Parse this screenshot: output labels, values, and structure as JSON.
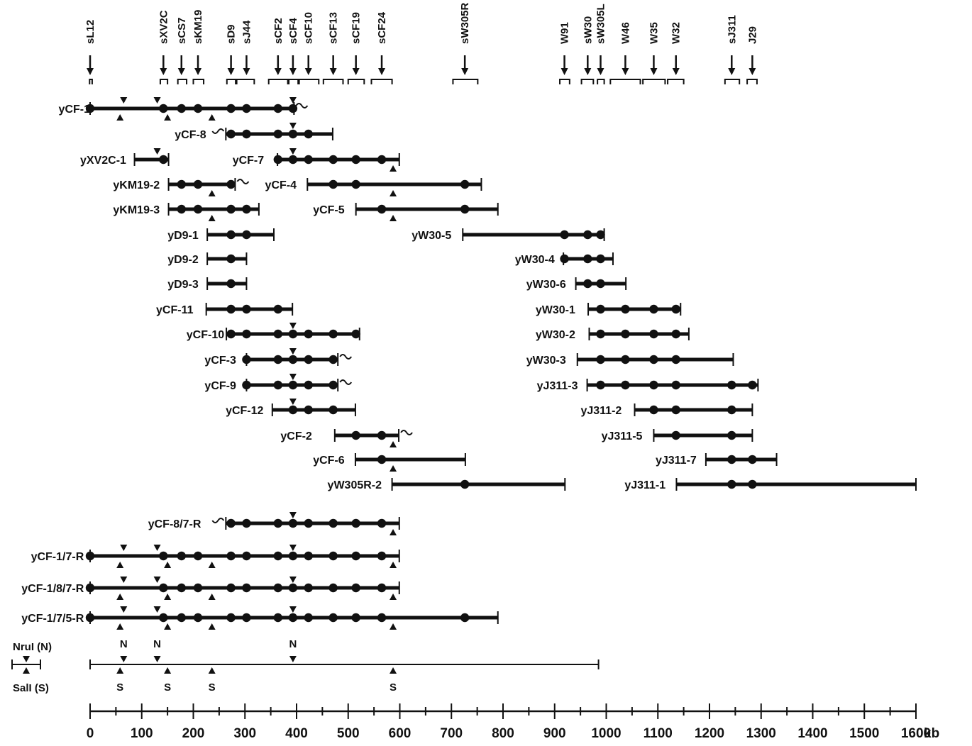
{
  "probes": [
    {
      "name": "sL12",
      "kb": 0,
      "lo": -1,
      "hi": 4
    },
    {
      "name": "sXV2C",
      "kb": 142,
      "lo": 136,
      "hi": 150
    },
    {
      "name": "sCS7",
      "kb": 177,
      "lo": 170,
      "hi": 187
    },
    {
      "name": "sKM19",
      "kb": 209,
      "lo": 200,
      "hi": 220
    },
    {
      "name": "sD9",
      "kb": 273,
      "lo": 265,
      "hi": 282
    },
    {
      "name": "sJ44",
      "kb": 303,
      "lo": 284,
      "hi": 318
    },
    {
      "name": "sCF2",
      "kb": 364,
      "lo": 346,
      "hi": 383
    },
    {
      "name": "sCF4",
      "kb": 393,
      "lo": 385,
      "hi": 403
    },
    {
      "name": "sCF10",
      "kb": 423,
      "lo": 405,
      "hi": 443
    },
    {
      "name": "sCF13",
      "kb": 471,
      "lo": 452,
      "hi": 490
    },
    {
      "name": "sCF19",
      "kb": 515,
      "lo": 500,
      "hi": 531
    },
    {
      "name": "sCF24",
      "kb": 565,
      "lo": 545,
      "hi": 585
    },
    {
      "name": "sW305R",
      "kb": 726,
      "lo": 703,
      "hi": 751
    },
    {
      "name": "W91",
      "kb": 919,
      "lo": 910,
      "hi": 929
    },
    {
      "name": "sW30",
      "kb": 964,
      "lo": 952,
      "hi": 975
    },
    {
      "name": "sW305L",
      "kb": 989,
      "lo": 983,
      "hi": 996
    },
    {
      "name": "W46",
      "kb": 1037,
      "lo": 1008,
      "hi": 1066
    },
    {
      "name": "W35",
      "kb": 1092,
      "lo": 1071,
      "hi": 1114
    },
    {
      "name": "W32",
      "kb": 1135,
      "lo": 1119,
      "hi": 1150
    },
    {
      "name": "sJ311",
      "kb": 1243,
      "lo": 1230,
      "hi": 1258
    },
    {
      "name": "J29",
      "kb": 1283,
      "lo": 1273,
      "hi": 1292
    }
  ],
  "clones": [
    {
      "label": "yCF-1",
      "label_end": 0,
      "start": 0,
      "end": 395,
      "wavy_right": true,
      "markers": [
        0,
        142,
        177,
        209,
        273,
        303,
        364,
        393
      ],
      "n_sites": [
        65,
        130,
        393
      ],
      "s_sites": [
        58,
        150,
        236
      ]
    },
    {
      "label": "yCF-8",
      "label_end": 225,
      "start": 263,
      "end": 470,
      "wavy_left": true,
      "markers": [
        273,
        303,
        364,
        393,
        423
      ],
      "n_sites": [
        393
      ],
      "s_sites": []
    },
    {
      "label": "yXV2C-1",
      "label_end": 70,
      "start": 86,
      "end": 152,
      "markers": [
        142
      ],
      "n_sites": [
        130
      ],
      "s_sites": []
    },
    {
      "label": "yCF-7",
      "label_end": 337,
      "start": 363,
      "end": 599,
      "markers": [
        364,
        393,
        423,
        471,
        515,
        565
      ],
      "n_sites": [
        393
      ],
      "s_sites": [
        587
      ]
    },
    {
      "label": "yKM19-2",
      "label_end": 135,
      "start": 152,
      "end": 281,
      "wavy_right": true,
      "markers": [
        177,
        209,
        273
      ],
      "n_sites": [],
      "s_sites": [
        236
      ]
    },
    {
      "label": "yCF-4",
      "label_end": 400,
      "start": 421,
      "end": 758,
      "markers": [
        471,
        515,
        726
      ],
      "n_sites": [],
      "s_sites": [
        587
      ]
    },
    {
      "label": "yKM19-3",
      "label_end": 135,
      "start": 152,
      "end": 327,
      "markers": [
        177,
        209,
        273,
        303
      ],
      "n_sites": [],
      "s_sites": [
        236
      ]
    },
    {
      "label": "yCF-5",
      "label_end": 493,
      "start": 515,
      "end": 790,
      "markers": [
        565,
        726
      ],
      "n_sites": [],
      "s_sites": [
        587
      ]
    },
    {
      "label": "yD9-1",
      "label_end": 210,
      "start": 227,
      "end": 356,
      "markers": [
        273,
        303
      ],
      "n_sites": [],
      "s_sites": []
    },
    {
      "label": "yW30-5",
      "label_end": 700,
      "start": 722,
      "end": 996,
      "markers": [
        919,
        964,
        989
      ],
      "n_sites": [],
      "s_sites": []
    },
    {
      "label": "yD9-2",
      "label_end": 210,
      "start": 227,
      "end": 303,
      "markers": [
        273
      ],
      "n_sites": [],
      "s_sites": []
    },
    {
      "label": "yW30-4",
      "label_end": 900,
      "start": 917,
      "end": 1013,
      "markers": [
        919,
        964,
        989
      ],
      "n_sites": [],
      "s_sites": []
    },
    {
      "label": "yD9-3",
      "label_end": 210,
      "start": 227,
      "end": 303,
      "markers": [
        273
      ],
      "n_sites": [],
      "s_sites": []
    },
    {
      "label": "yW30-6",
      "label_end": 922,
      "start": 941,
      "end": 1038,
      "markers": [
        964,
        989
      ],
      "n_sites": [],
      "s_sites": []
    },
    {
      "label": "yCF-11",
      "label_end": 200,
      "start": 225,
      "end": 392,
      "markers": [
        273,
        303,
        364
      ],
      "n_sites": [],
      "s_sites": []
    },
    {
      "label": "yW30-1",
      "label_end": 940,
      "start": 965,
      "end": 1144,
      "markers": [
        989,
        1037,
        1092,
        1135
      ],
      "n_sites": [],
      "s_sites": []
    },
    {
      "label": "yCF-10",
      "label_end": 260,
      "start": 264,
      "end": 522,
      "markers": [
        273,
        303,
        364,
        393,
        423,
        471,
        515
      ],
      "n_sites": [
        393
      ],
      "s_sites": []
    },
    {
      "label": "yW30-2",
      "label_end": 940,
      "start": 967,
      "end": 1160,
      "markers": [
        989,
        1037,
        1092,
        1135
      ],
      "n_sites": [],
      "s_sites": []
    },
    {
      "label": "yCF-3",
      "label_end": 283,
      "start": 303,
      "end": 480,
      "wavy_right": true,
      "markers": [
        303,
        364,
        393,
        423,
        471
      ],
      "n_sites": [
        393
      ],
      "s_sites": []
    },
    {
      "label": "yW30-3",
      "label_end": 922,
      "start": 944,
      "end": 1246,
      "markers": [
        989,
        1037,
        1092,
        1135
      ],
      "n_sites": [],
      "s_sites": []
    },
    {
      "label": "yCF-9",
      "label_end": 283,
      "start": 303,
      "end": 480,
      "wavy_right": true,
      "markers": [
        303,
        364,
        393,
        423,
        471
      ],
      "n_sites": [
        393
      ],
      "s_sites": []
    },
    {
      "label": "yJ311-3",
      "label_end": 945,
      "start": 963,
      "end": 1294,
      "markers": [
        989,
        1037,
        1092,
        1135,
        1243,
        1283
      ],
      "n_sites": [],
      "s_sites": []
    },
    {
      "label": "yCF-12",
      "label_end": 336,
      "start": 353,
      "end": 514,
      "markers": [
        393,
        423,
        471
      ],
      "n_sites": [
        393
      ],
      "s_sites": []
    },
    {
      "label": "yJ311-2",
      "label_end": 1030,
      "start": 1055,
      "end": 1283,
      "markers": [
        1092,
        1135,
        1243
      ],
      "n_sites": [],
      "s_sites": []
    },
    {
      "label": "yCF-2",
      "label_end": 430,
      "start": 474,
      "end": 598,
      "wavy_right": true,
      "markers": [
        515,
        565
      ],
      "n_sites": [],
      "s_sites": [
        587
      ]
    },
    {
      "label": "yJ311-5",
      "label_end": 1070,
      "start": 1092,
      "end": 1283,
      "markers": [
        1135,
        1243
      ],
      "n_sites": [],
      "s_sites": []
    },
    {
      "label": "yCF-6",
      "label_end": 493,
      "start": 514,
      "end": 727,
      "markers": [
        565
      ],
      "n_sites": [],
      "s_sites": [
        587
      ]
    },
    {
      "label": "yJ311-7",
      "label_end": 1175,
      "start": 1193,
      "end": 1330,
      "markers": [
        1243,
        1283
      ],
      "n_sites": [],
      "s_sites": []
    },
    {
      "label": "yW305R-2",
      "label_end": 565,
      "start": 585,
      "end": 920,
      "markers": [
        726
      ],
      "n_sites": [],
      "s_sites": []
    },
    {
      "label": "yJ311-1",
      "label_end": 1115,
      "start": 1136,
      "end": 1600,
      "markers": [
        1243,
        1283
      ],
      "n_sites": [],
      "s_sites": []
    },
    {
      "label": "yCF-8/7-R",
      "label_end": 215,
      "start": 263,
      "end": 599,
      "wavy_left": true,
      "markers": [
        273,
        303,
        364,
        393,
        423,
        471,
        515,
        565
      ],
      "n_sites": [
        393
      ],
      "s_sites": [
        587
      ]
    },
    {
      "label": "yCF-1/7-R",
      "label_end": -12,
      "start": 0,
      "end": 599,
      "markers": [
        0,
        142,
        177,
        209,
        273,
        303,
        364,
        393,
        423,
        471,
        515,
        565
      ],
      "n_sites": [
        65,
        130,
        393
      ],
      "s_sites": [
        58,
        150,
        236,
        587
      ]
    },
    {
      "label": "yCF-1/8/7-R",
      "label_end": -12,
      "start": 0,
      "end": 599,
      "markers": [
        0,
        142,
        177,
        209,
        273,
        303,
        364,
        393,
        423,
        471,
        515,
        565
      ],
      "n_sites": [
        65,
        130,
        393
      ],
      "s_sites": [
        58,
        150,
        236,
        587
      ]
    },
    {
      "label": "yCF-1/7/5-R",
      "label_end": -12,
      "start": 0,
      "end": 790,
      "markers": [
        0,
        142,
        177,
        209,
        273,
        303,
        364,
        393,
        423,
        471,
        515,
        565,
        726
      ],
      "n_sites": [
        65,
        130,
        393
      ],
      "s_sites": [
        58,
        150,
        236,
        587
      ]
    }
  ],
  "restriction_map": {
    "nrui_label": "NruI (N)",
    "sali_label": "SalI (S)",
    "n_letter": "N",
    "s_letter": "S",
    "n_sites": [
      65,
      130,
      393
    ],
    "s_sites": [
      58,
      150,
      236,
      587
    ],
    "end_kb": 985
  },
  "axis": {
    "min": 0,
    "max": 1600,
    "major_step": 100,
    "minor_step": 50,
    "tick_labels": [
      "0",
      "100",
      "200",
      "300",
      "400",
      "500",
      "600",
      "700",
      "800",
      "900",
      "1000",
      "1100",
      "1200",
      "1300",
      "1400",
      "1500",
      "1600"
    ],
    "unit": "kb"
  },
  "colors": {
    "ink": "#111111",
    "background": "#ffffff"
  }
}
